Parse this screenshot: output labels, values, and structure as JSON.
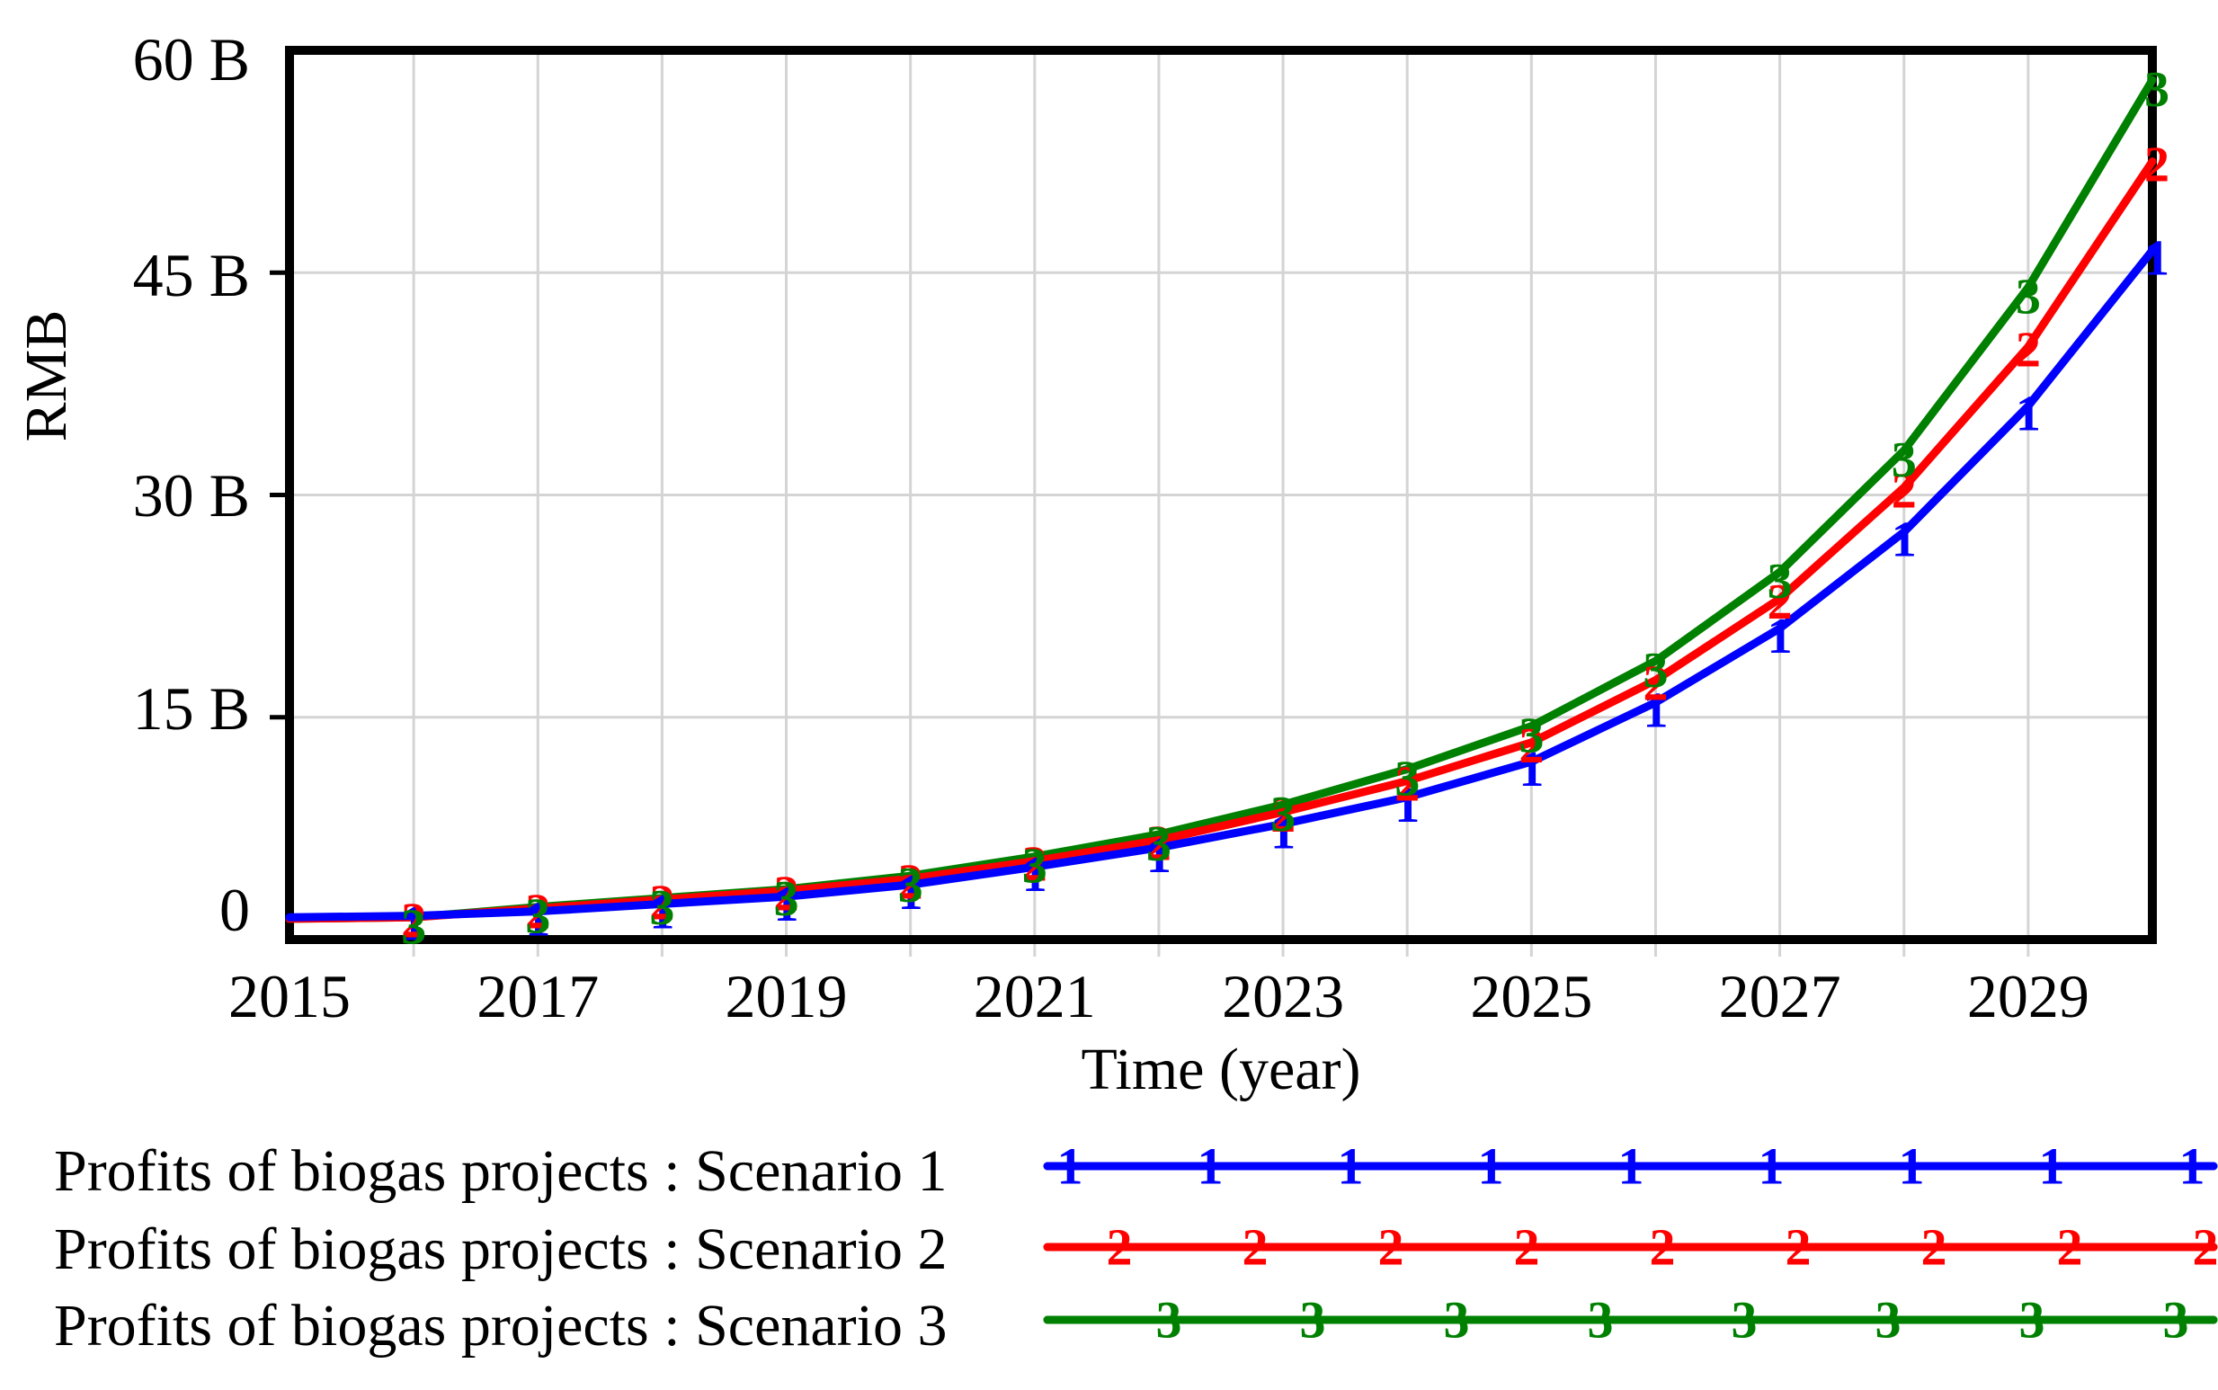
{
  "chart_data": {
    "type": "line",
    "title": "",
    "xlabel": "Time (year)",
    "ylabel": "RMB",
    "xlim": [
      2015,
      2030
    ],
    "ylim": [
      0,
      60
    ],
    "grid": true,
    "legend_position": "bottom-left",
    "x": [
      2015,
      2016,
      2017,
      2018,
      2019,
      2020,
      2021,
      2022,
      2023,
      2024,
      2025,
      2026,
      2027,
      2028,
      2029,
      2030
    ],
    "xtick_labels": [
      "2015",
      "2017",
      "2019",
      "2021",
      "2023",
      "2025",
      "2027",
      "2029"
    ],
    "ytick_labels": [
      {
        "value": 0,
        "label": "0"
      },
      {
        "value": 15,
        "label": "15 B"
      },
      {
        "value": 30,
        "label": "30 B"
      },
      {
        "value": 45,
        "label": "45 B"
      },
      {
        "value": 60,
        "label": "60 B"
      }
    ],
    "series": [
      {
        "name": "Profits of biogas projects : Scenario 1",
        "marker_digit": "1",
        "color": "#0000FF",
        "values": [
          1.5,
          1.6,
          1.9,
          2.4,
          2.9,
          3.7,
          4.9,
          6.2,
          7.8,
          9.6,
          12.0,
          16.0,
          21.0,
          27.5,
          36.0,
          46.5
        ]
      },
      {
        "name": "Profits of biogas projects : Scenario 2",
        "marker_digit": "2",
        "color": "#FF0000",
        "values": [
          1.4,
          1.5,
          2.1,
          2.7,
          3.3,
          4.1,
          5.3,
          6.7,
          8.6,
          10.7,
          13.3,
          17.5,
          23.0,
          30.5,
          40.0,
          52.5
        ]
      },
      {
        "name": "Profits of biogas projects : Scenario 3",
        "marker_digit": "3",
        "color": "#008000",
        "values": [
          1.4,
          1.5,
          2.2,
          2.8,
          3.4,
          4.3,
          5.6,
          7.1,
          9.1,
          11.5,
          14.4,
          18.8,
          24.8,
          33.0,
          44.0,
          58.0
        ]
      }
    ],
    "colors": {
      "axis": "#000000",
      "gridline": "#D4D4D4",
      "background": "#FFFFFF"
    }
  },
  "legend": [
    {
      "label": "Profits of biogas projects : Scenario 1",
      "digit": "1",
      "color": "#0000FF"
    },
    {
      "label": "Profits of biogas projects : Scenario 2",
      "digit": "2",
      "color": "#FF0000"
    },
    {
      "label": "Profits of biogas projects : Scenario 3",
      "digit": "3",
      "color": "#008000"
    }
  ]
}
